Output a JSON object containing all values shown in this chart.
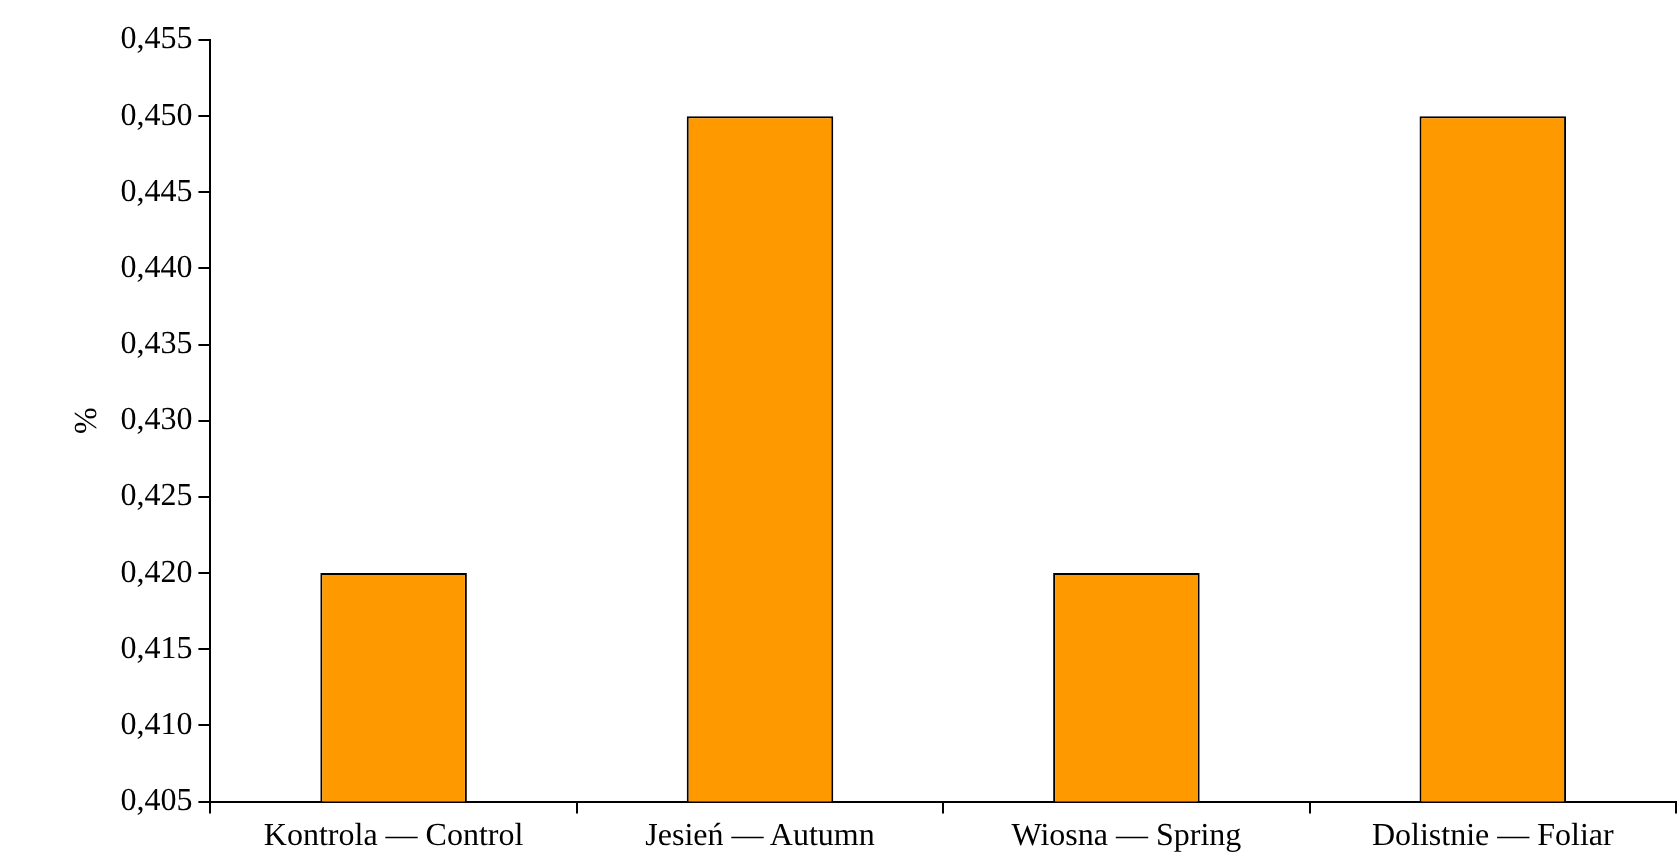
{
  "chart_data": {
    "type": "bar",
    "categories": [
      "Kontrola — Control",
      "Jesień — Autumn",
      "Wiosna — Spring",
      "Dolistnie — Foliar"
    ],
    "values": [
      0.42,
      0.45,
      0.42,
      0.45
    ],
    "color": "#ff9900",
    "ylabel": "%",
    "ylim": [
      0.405,
      0.455
    ],
    "yticks": [
      {
        "value": 0.405,
        "label": "0,405"
      },
      {
        "value": 0.41,
        "label": "0,410"
      },
      {
        "value": 0.415,
        "label": "0,415"
      },
      {
        "value": 0.42,
        "label": "0,420"
      },
      {
        "value": 0.425,
        "label": "0,425"
      },
      {
        "value": 0.43,
        "label": "0,430"
      },
      {
        "value": 0.435,
        "label": "0,435"
      },
      {
        "value": 0.44,
        "label": "0,440"
      },
      {
        "value": 0.445,
        "label": "0,445"
      },
      {
        "value": 0.45,
        "label": "0,450"
      },
      {
        "value": 0.455,
        "label": "0,455"
      }
    ],
    "grid": false,
    "legend": false
  }
}
